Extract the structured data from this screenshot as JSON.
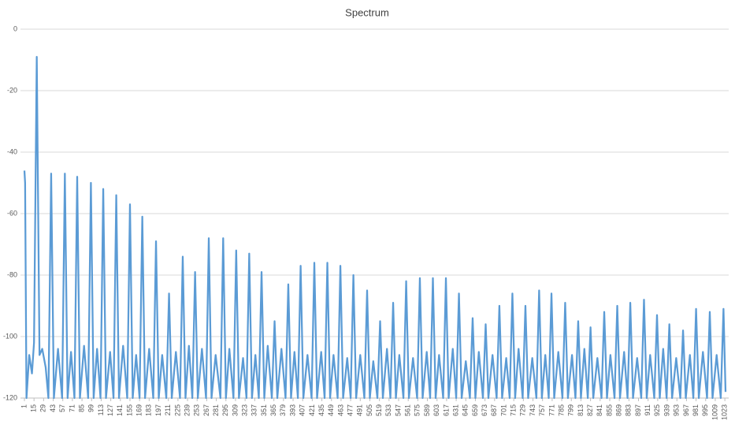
{
  "chart_data": {
    "type": "line",
    "title": "Spectrum",
    "x": [
      1,
      2,
      4,
      8,
      12,
      15,
      19,
      23,
      27,
      32,
      36,
      40,
      44,
      50,
      56,
      60,
      64,
      69,
      74,
      78,
      82,
      88,
      94,
      98,
      102,
      107,
      112,
      116,
      120,
      126,
      131,
      135,
      139,
      145,
      151,
      155,
      159,
      164,
      169,
      173,
      177,
      183,
      189,
      193,
      197,
      202,
      208,
      212,
      216,
      222,
      228,
      232,
      236,
      241,
      246,
      250,
      254,
      260,
      266,
      270,
      274,
      280,
      287,
      291,
      295,
      300,
      306,
      310,
      314,
      320,
      325,
      329,
      333,
      338,
      343,
      347,
      351,
      356,
      362,
      366,
      370,
      376,
      382,
      386,
      390,
      395,
      400,
      404,
      408,
      414,
      420,
      424,
      428,
      434,
      439,
      443,
      447,
      452,
      458,
      462,
      466,
      472,
      477,
      481,
      485,
      491,
      497,
      501,
      505,
      510,
      516,
      520,
      524,
      530,
      535,
      539,
      543,
      548,
      554,
      558,
      562,
      568,
      574,
      578,
      582,
      588,
      593,
      597,
      601,
      606,
      612,
      616,
      620,
      626,
      631,
      635,
      639,
      645,
      651,
      655,
      659,
      664,
      670,
      674,
      678,
      684,
      690,
      694,
      698,
      704,
      709,
      713,
      717,
      722,
      728,
      732,
      736,
      742,
      748,
      752,
      756,
      761,
      766,
      770,
      774,
      780,
      786,
      790,
      794,
      800,
      805,
      809,
      813,
      818,
      823,
      827,
      831,
      837,
      843,
      847,
      851,
      856,
      862,
      866,
      870,
      876,
      881,
      885,
      889,
      895,
      901,
      905,
      909,
      914,
      920,
      924,
      928,
      933,
      938,
      942,
      946,
      952,
      958,
      962,
      966,
      972,
      977,
      981,
      985,
      991,
      997,
      1001,
      1005,
      1011,
      1017,
      1021,
      1024
    ],
    "series": [
      {
        "color": "#5b9bd5",
        "values": [
          -46,
          -50,
          -120,
          -106,
          -112,
          -102,
          -9,
          -106,
          -104,
          -110,
          -120,
          -47,
          -120,
          -104,
          -120,
          -47,
          -120,
          -105,
          -120,
          -48,
          -120,
          -103,
          -120,
          -50,
          -120,
          -104,
          -120,
          -52,
          -120,
          -105,
          -120,
          -54,
          -120,
          -103,
          -120,
          -57,
          -120,
          -106,
          -120,
          -61,
          -120,
          -104,
          -120,
          -69,
          -120,
          -106,
          -120,
          -86,
          -120,
          -105,
          -120,
          -74,
          -120,
          -103,
          -120,
          -79,
          -120,
          -104,
          -120,
          -68,
          -120,
          -106,
          -120,
          -68,
          -120,
          -104,
          -120,
          -72,
          -120,
          -107,
          -120,
          -73,
          -120,
          -106,
          -120,
          -79,
          -120,
          -103,
          -120,
          -95,
          -120,
          -104,
          -120,
          -83,
          -120,
          -105,
          -120,
          -77,
          -120,
          -106,
          -120,
          -76,
          -120,
          -105,
          -120,
          -76,
          -120,
          -106,
          -120,
          -77,
          -120,
          -107,
          -120,
          -80,
          -120,
          -106,
          -120,
          -85,
          -120,
          -108,
          -120,
          -95,
          -120,
          -104,
          -120,
          -89,
          -120,
          -106,
          -120,
          -82,
          -120,
          -107,
          -120,
          -81,
          -120,
          -105,
          -120,
          -81,
          -120,
          -106,
          -120,
          -81,
          -120,
          -104,
          -120,
          -86,
          -120,
          -108,
          -120,
          -94,
          -120,
          -105,
          -120,
          -96,
          -120,
          -106,
          -120,
          -90,
          -120,
          -107,
          -120,
          -86,
          -120,
          -104,
          -120,
          -90,
          -120,
          -107,
          -120,
          -85,
          -120,
          -106,
          -120,
          -86,
          -120,
          -105,
          -120,
          -89,
          -120,
          -106,
          -120,
          -95,
          -120,
          -104,
          -120,
          -97,
          -120,
          -107,
          -120,
          -92,
          -120,
          -106,
          -120,
          -90,
          -120,
          -105,
          -120,
          -89,
          -120,
          -107,
          -120,
          -88,
          -120,
          -106,
          -120,
          -93,
          -120,
          -104,
          -120,
          -96,
          -120,
          -107,
          -120,
          -98,
          -120,
          -106,
          -120,
          -91,
          -120,
          -105,
          -120,
          -92,
          -120,
          -106,
          -120,
          -91,
          -118
        ]
      }
    ],
    "xlim": [
      1,
      1024
    ],
    "xticks": [
      1,
      15,
      29,
      43,
      57,
      71,
      85,
      99,
      113,
      127,
      141,
      155,
      169,
      183,
      197,
      211,
      225,
      239,
      253,
      267,
      281,
      295,
      309,
      323,
      337,
      351,
      365,
      379,
      393,
      407,
      421,
      435,
      449,
      463,
      477,
      491,
      505,
      519,
      533,
      547,
      561,
      575,
      589,
      603,
      617,
      631,
      645,
      659,
      673,
      687,
      701,
      715,
      729,
      743,
      757,
      771,
      785,
      799,
      813,
      827,
      841,
      855,
      869,
      883,
      897,
      911,
      925,
      939,
      953,
      967,
      981,
      995,
      1009,
      1023
    ],
    "ylim": [
      -120,
      0
    ],
    "yticks": [
      -120,
      -100,
      -80,
      -60,
      -40,
      -20,
      0
    ],
    "grid": true
  }
}
